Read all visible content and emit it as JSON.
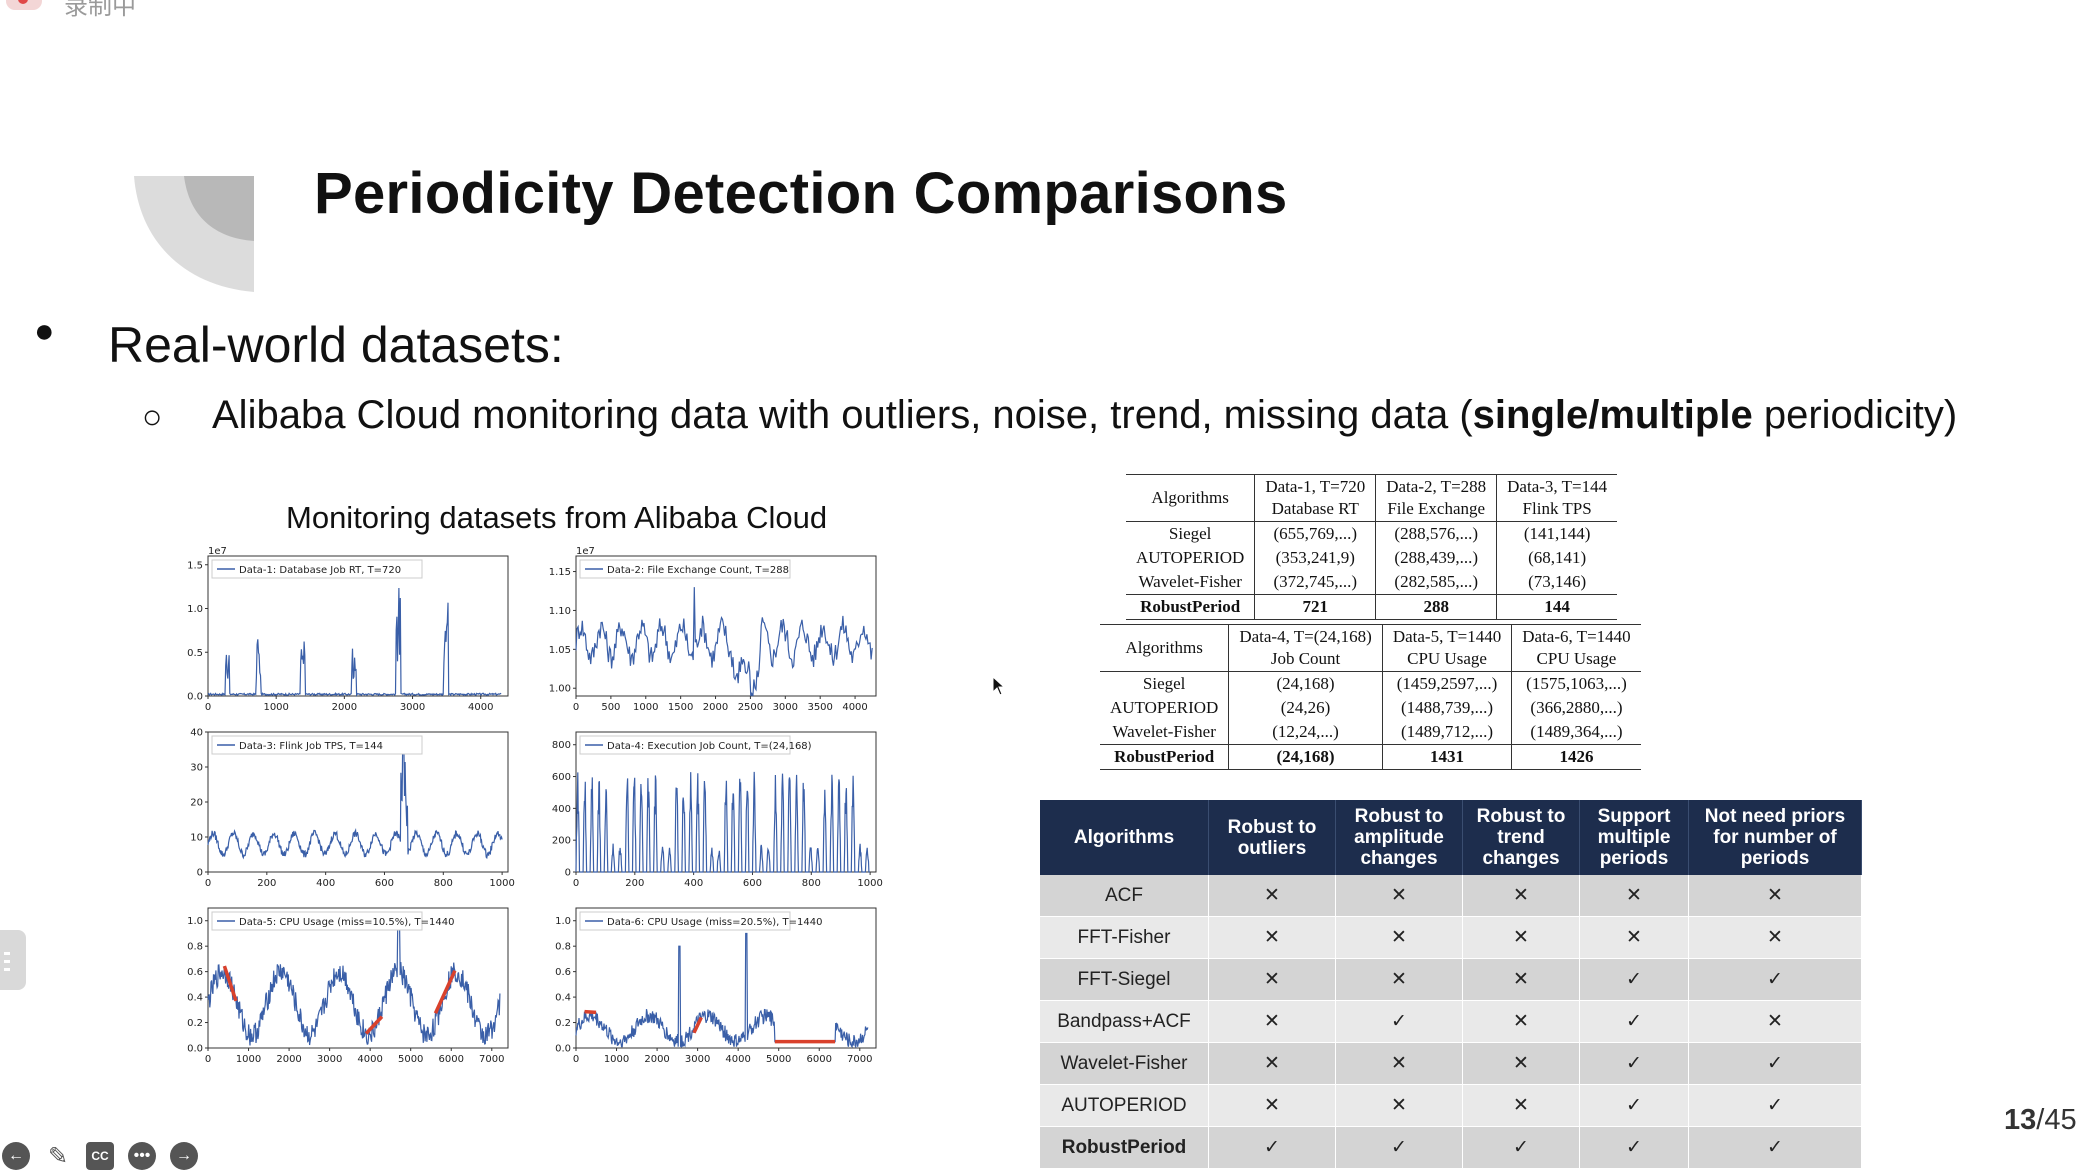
{
  "recording": {
    "label": "录制中"
  },
  "slide": {
    "title": "Periodicity Detection Comparisons",
    "bullet_main": "Real-world datasets:",
    "bullet_sub_before": "Alibaba Cloud monitoring data with outliers, noise, trend, missing data (",
    "bullet_sub_bold": "single/multiple",
    "bullet_sub_after": " periodicity)",
    "charts_title": "Monitoring datasets from Alibaba Cloud",
    "page_current": "13",
    "page_total": "/45"
  },
  "toolbar": {
    "icons": [
      "arrow-left-icon",
      "pen-icon",
      "cc-icon",
      "more-icon",
      "arrow-right-icon"
    ],
    "cc_label": "CC"
  },
  "chart_data": [
    {
      "type": "line",
      "legend": "Data-1: Database Job RT, T=720",
      "exponent": "1e7",
      "xticks": [
        "0",
        "1000",
        "2000",
        "3000",
        "4000"
      ],
      "yticks": [
        "0.0",
        "0.5",
        "1.0",
        "1.5"
      ],
      "xlim": [
        0,
        4400
      ],
      "ylim": [
        0,
        1.6
      ],
      "color": "#3a5fa8"
    },
    {
      "type": "line",
      "legend": "Data-2: File Exchange Count, T=288",
      "exponent": "1e7",
      "xticks": [
        "0",
        "500",
        "1000",
        "1500",
        "2000",
        "2500",
        "3000",
        "3500",
        "4000"
      ],
      "yticks": [
        "1.00",
        "1.05",
        "1.10",
        "1.15"
      ],
      "xlim": [
        0,
        4300
      ],
      "ylim": [
        0.99,
        1.17
      ],
      "color": "#3a5fa8"
    },
    {
      "type": "line",
      "legend": "Data-3: Flink Job TPS, T=144",
      "xticks": [
        "0",
        "200",
        "400",
        "600",
        "800",
        "1000"
      ],
      "yticks": [
        "0",
        "10",
        "20",
        "30",
        "40"
      ],
      "xlim": [
        0,
        1020
      ],
      "ylim": [
        0,
        40
      ],
      "color": "#3a5fa8"
    },
    {
      "type": "line",
      "legend": "Data-4: Execution Job Count, T=(24,168)",
      "xticks": [
        "0",
        "200",
        "400",
        "600",
        "800",
        "1000"
      ],
      "yticks": [
        "0",
        "200",
        "400",
        "600",
        "800"
      ],
      "xlim": [
        0,
        1020
      ],
      "ylim": [
        0,
        880
      ],
      "color": "#3a5fa8"
    },
    {
      "type": "line",
      "legend": "Data-5: CPU Usage (miss=10.5%), T=1440",
      "xticks": [
        "0",
        "1000",
        "2000",
        "3000",
        "4000",
        "5000",
        "6000",
        "7000"
      ],
      "yticks": [
        "0.0",
        "0.2",
        "0.4",
        "0.6",
        "0.8",
        "1.0"
      ],
      "xlim": [
        0,
        7400
      ],
      "ylim": [
        0,
        1.1
      ],
      "color": "#3a5fa8",
      "missing_color": "#d9412c"
    },
    {
      "type": "line",
      "legend": "Data-6: CPU Usage (miss=20.5%), T=1440",
      "xticks": [
        "0",
        "1000",
        "2000",
        "3000",
        "4000",
        "5000",
        "6000",
        "7000"
      ],
      "yticks": [
        "0.0",
        "0.2",
        "0.4",
        "0.6",
        "0.8",
        "1.0"
      ],
      "xlim": [
        0,
        7400
      ],
      "ylim": [
        0,
        1.1
      ],
      "color": "#3a5fa8",
      "missing_color": "#d9412c"
    }
  ],
  "table1": {
    "head": [
      "Algorithms",
      "Data-1, T=720\nDatabase RT",
      "Data-2, T=288\nFile Exchange",
      "Data-3, T=144\nFlink TPS"
    ],
    "rows": [
      [
        "Siegel",
        "(655,769,...)",
        "(288,576,...)",
        "(141,144)"
      ],
      [
        "AUTOPERIOD",
        "(353,241,9)",
        "(288,439,...)",
        "(68,141)"
      ],
      [
        "Wavelet-Fisher",
        "(372,745,...)",
        "(282,585,...)",
        "(73,146)"
      ],
      [
        "RobustPeriod",
        "721",
        "288",
        "144"
      ]
    ]
  },
  "table2": {
    "head": [
      "Algorithms",
      "Data-4, T=(24,168)\nJob Count",
      "Data-5, T=1440\nCPU Usage",
      "Data-6, T=1440\nCPU Usage"
    ],
    "rows": [
      [
        "Siegel",
        "(24,168)",
        "(1459,2597,...)",
        "(1575,1063,...)"
      ],
      [
        "AUTOPERIOD",
        "(24,26)",
        "(1488,739,...)",
        "(366,2880,...)"
      ],
      [
        "Wavelet-Fisher",
        "(12,24,...)",
        "(1489,712,...)",
        "(1489,364,...)"
      ],
      [
        "RobustPeriod",
        "(24,168)",
        "1431",
        "1426"
      ]
    ]
  },
  "table3": {
    "head": [
      "Algorithms",
      "Robust to outliers",
      "Robust to amplitude changes",
      "Robust to trend changes",
      "Support multiple periods",
      "Not need priors for number of periods"
    ],
    "rows": [
      [
        "ACF",
        "✕",
        "✕",
        "✕",
        "✕",
        "✕"
      ],
      [
        "FFT-Fisher",
        "✕",
        "✕",
        "✕",
        "✕",
        "✕"
      ],
      [
        "FFT-Siegel",
        "✕",
        "✕",
        "✕",
        "✓",
        "✓"
      ],
      [
        "Bandpass+ACF",
        "✕",
        "✓",
        "✕",
        "✓",
        "✕"
      ],
      [
        "Wavelet-Fisher",
        "✕",
        "✕",
        "✕",
        "✓",
        "✓"
      ],
      [
        "AUTOPERIOD",
        "✕",
        "✕",
        "✕",
        "✓",
        "✓"
      ],
      [
        "RobustPeriod",
        "✓",
        "✓",
        "✓",
        "✓",
        "✓"
      ]
    ]
  }
}
